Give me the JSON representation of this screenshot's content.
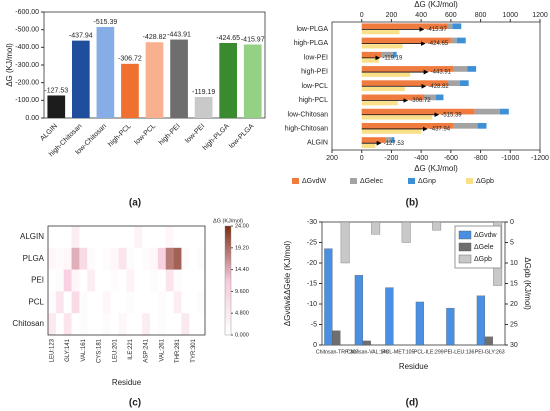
{
  "chart_data": [
    {
      "type": "bar",
      "label": "(a)",
      "ylabel": "ΔG (KJ/mol)",
      "categories": [
        "ALGIN",
        "high-Chitosan",
        "low-Chitosan",
        "high-PCL",
        "low-PCL",
        "high-PEI",
        "low-PEI",
        "high-PLGA",
        "low-PLGA"
      ],
      "values": [
        -127.53,
        -437.94,
        -515.39,
        -306.72,
        -428.82,
        -443.91,
        -119.19,
        -424.65,
        -415.97
      ],
      "colors": [
        "#1c1c1c",
        "#1f4e9c",
        "#86ade6",
        "#f0712f",
        "#f8b08e",
        "#6e6e6e",
        "#c9c9c9",
        "#3a8a30",
        "#94d184"
      ],
      "ylim": [
        0,
        -600
      ],
      "yticks": [
        {
          "value": -600,
          "label": "-600.00"
        },
        {
          "value": -500,
          "label": "-500.00"
        },
        {
          "value": -400,
          "label": "-400.00"
        },
        {
          "value": -300,
          "label": "-300.00"
        },
        {
          "value": -200,
          "label": "-200.00"
        },
        {
          "value": -100,
          "label": "-100.00"
        },
        {
          "value": 0,
          "label": "0.00"
        }
      ],
      "xtick_rotation": 45
    },
    {
      "type": "barh",
      "label": "(b)",
      "xlabel": "ΔG (KJ/mol)",
      "x2label": "ΔG (KJ/mol)",
      "categories": [
        "low-PLGA",
        "high-PLGA",
        "low-PEI",
        "high-PEI",
        "low-PCL",
        "high-PCL",
        "low-Chitosan",
        "high-Chitosan",
        "ALGIN"
      ],
      "series": [
        {
          "name": "ΔGvdW",
          "color": "#f07b3f",
          "values": [
            -580,
            -600,
            -130,
            -620,
            -580,
            -420,
            -760,
            -620,
            -160
          ]
        },
        {
          "name": "ΔGelec",
          "color": "#a3a3a3",
          "values": [
            -30,
            -40,
            -80,
            -90,
            -80,
            -80,
            -170,
            -160,
            -40
          ]
        },
        {
          "name": "ΔGnp",
          "color": "#3d8fd6",
          "values": [
            -60,
            -60,
            -25,
            -60,
            -60,
            -50,
            -60,
            -60,
            -20
          ]
        },
        {
          "name": "ΔGpb",
          "color": "#fbe08a",
          "axis": "x2",
          "values": [
            254,
            275,
            116,
            326,
            291,
            243,
            475,
            402,
            92
          ]
        }
      ],
      "totals": [
        -415.97,
        -424.65,
        -119.19,
        -443.91,
        -428.82,
        -306.72,
        -515.39,
        -437.94,
        -127.53
      ],
      "xlim": [
        200,
        -1200
      ],
      "xticks": [
        200,
        0,
        -200,
        -400,
        -600,
        -800,
        -1000,
        -1200
      ],
      "x2lim": [
        -200,
        1200
      ],
      "x2ticks": [
        0,
        200,
        400,
        600,
        800,
        1000,
        1200
      ],
      "legend": "lower center"
    },
    {
      "type": "heatmap",
      "label": "(c)",
      "xlabel": "Residue",
      "colorbar_label": "ΔG (KJ/mol)",
      "rows": [
        "ALGIN",
        "PLGA",
        "PEI",
        "PCL",
        "Chitosan"
      ],
      "categories": [
        "LEU:123",
        null,
        "GLY:141",
        null,
        "VAL:161",
        null,
        "CYS:181",
        null,
        "LEU:201",
        null,
        "ILE:221",
        null,
        "ASP:241",
        null,
        "VAL:261",
        null,
        "THR:281",
        null,
        "TYR:301",
        null
      ],
      "values": [
        [
          0,
          0,
          0,
          4,
          0,
          0,
          0,
          0,
          0,
          0,
          0,
          3,
          0,
          0,
          0,
          2,
          0,
          0,
          0,
          0
        ],
        [
          2,
          1,
          2,
          14,
          8,
          1,
          0,
          1,
          2,
          6,
          1,
          0,
          1,
          2,
          10,
          18,
          20,
          1,
          0,
          1
        ],
        [
          0,
          1,
          10,
          2,
          0,
          4,
          0,
          0,
          1,
          0,
          3,
          0,
          0,
          1,
          0,
          6,
          1,
          0,
          0,
          0
        ],
        [
          1,
          6,
          0,
          8,
          1,
          0,
          0,
          2,
          0,
          0,
          1,
          0,
          0,
          0,
          1,
          0,
          4,
          0,
          0,
          1
        ],
        [
          5,
          0,
          6,
          0,
          1,
          0,
          0,
          1,
          0,
          2,
          0,
          0,
          4,
          0,
          1,
          0,
          0,
          5,
          0,
          0
        ]
      ],
      "clim": [
        0,
        24
      ],
      "cticks": [
        {
          "value": 0,
          "label": "0.000"
        },
        {
          "value": 4.8,
          "label": "4.800"
        },
        {
          "value": 9.6,
          "label": "9.600"
        },
        {
          "value": 14.4,
          "label": "14.40"
        },
        {
          "value": 19.2,
          "label": "19.20"
        },
        {
          "value": 24,
          "label": "24.00"
        }
      ],
      "colormap": [
        "#ffffff",
        "#f6c9dc",
        "#7a2e12"
      ]
    },
    {
      "type": "bar",
      "label": "(d)",
      "xlabel": "Residue",
      "ylabel": "ΔGvdw&ΔGele (KJ/mol)",
      "y2label": "ΔGpb (KJ/mol)",
      "categories": [
        "Chitosan-TRP:307",
        "Chitosan-VAL:149",
        "PCL-MET:105",
        "PCL-ILE:299",
        "PEI-LEU:136",
        "PEI-GLY:263"
      ],
      "series": [
        {
          "name": "ΔGvdw",
          "color": "#4a90e2",
          "values": [
            -23.5,
            -17,
            -14,
            -10.5,
            -9,
            -12
          ]
        },
        {
          "name": "ΔGele",
          "color": "#6f6f6f",
          "values": [
            -3.5,
            -1,
            0,
            0,
            0,
            -2
          ]
        },
        {
          "name": "ΔGpb",
          "color": "#c8c8c8",
          "axis": "y2",
          "values": [
            10,
            3,
            5,
            2,
            0,
            15.5
          ]
        }
      ],
      "ylim": [
        0,
        -30
      ],
      "yticks": [
        0,
        -5,
        -10,
        -15,
        -20,
        -25,
        -30
      ],
      "y2lim": [
        30,
        0
      ],
      "y2ticks": [
        0,
        5,
        10,
        15,
        20,
        25,
        30
      ],
      "legend": "upper right"
    }
  ]
}
